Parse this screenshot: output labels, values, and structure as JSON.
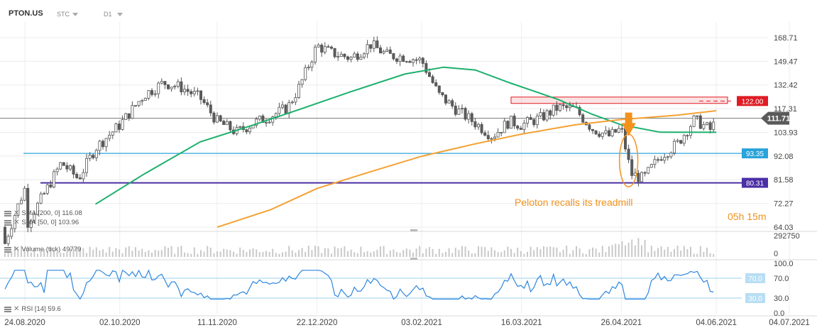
{
  "header": {
    "symbol": "PTON.US",
    "type_label": "STC",
    "timeframe": "D1"
  },
  "indicators": {
    "sma200": "SMA [200, 0] 116.08",
    "sma50": "SMA [50, 0] 103.96",
    "volume": "Volume (tick) 49779",
    "rsi": "RSI [14] 59.6"
  },
  "annotation": {
    "text": "Peloton recalls its treadmill",
    "timer": "05h 15m"
  },
  "colors": {
    "sma50": "#1bb06c",
    "sma200": "#f5a133",
    "support_93": "#29a3db",
    "support_80": "#4b2fa5",
    "resistance": "#e01b24",
    "annotation": "#f2921d",
    "rsi": "#2e86de",
    "up_candle": "#ffffff",
    "down_candle": "#5b5b5b"
  },
  "chart_data": [
    {
      "type": "candlestick",
      "x_ticks": [
        "24.08.2020",
        "02.10.2020",
        "11.11.2020",
        "22.12.2020",
        "03.02.2021",
        "16.03.2021",
        "26.04.2021",
        "04.06.2021",
        "04.07.2021"
      ],
      "y_ticks": [
        168.71,
        149.47,
        132.42,
        117.31,
        103.93,
        92.08,
        81.58,
        72.27,
        64.03
      ],
      "y_scale": "log",
      "current_price": 111.71,
      "price_levels": [
        {
          "value": 122.0,
          "label": "122.00",
          "color": "#e01b24"
        },
        {
          "value": 93.35,
          "label": "93.35",
          "color": "#29a3db"
        },
        {
          "value": 80.31,
          "label": "80.31",
          "color": "#4b2fa5"
        }
      ],
      "resistance_zone": [
        120.5,
        124.5
      ],
      "close_series": [
        {
          "date": "2020-08-24",
          "close": 64
        },
        {
          "date": "2020-09-01",
          "close": 76
        },
        {
          "date": "2020-09-08",
          "close": 89
        },
        {
          "date": "2020-09-15",
          "close": 82
        },
        {
          "date": "2020-09-22",
          "close": 96
        },
        {
          "date": "2020-10-02",
          "close": 108
        },
        {
          "date": "2020-10-12",
          "close": 126
        },
        {
          "date": "2020-10-20",
          "close": 134
        },
        {
          "date": "2020-10-27",
          "close": 131
        },
        {
          "date": "2020-11-04",
          "close": 124
        },
        {
          "date": "2020-11-11",
          "close": 110
        },
        {
          "date": "2020-11-19",
          "close": 104
        },
        {
          "date": "2020-11-26",
          "close": 109
        },
        {
          "date": "2020-12-03",
          "close": 113
        },
        {
          "date": "2020-12-10",
          "close": 118
        },
        {
          "date": "2020-12-15",
          "close": 132
        },
        {
          "date": "2020-12-22",
          "close": 162
        },
        {
          "date": "2020-12-28",
          "close": 156
        },
        {
          "date": "2021-01-05",
          "close": 152
        },
        {
          "date": "2021-01-13",
          "close": 163
        },
        {
          "date": "2021-01-20",
          "close": 154
        },
        {
          "date": "2021-01-27",
          "close": 153
        },
        {
          "date": "2021-02-03",
          "close": 150
        },
        {
          "date": "2021-02-10",
          "close": 126
        },
        {
          "date": "2021-02-18",
          "close": 116
        },
        {
          "date": "2021-02-25",
          "close": 109
        },
        {
          "date": "2021-03-04",
          "close": 102
        },
        {
          "date": "2021-03-11",
          "close": 110
        },
        {
          "date": "2021-03-16",
          "close": 108
        },
        {
          "date": "2021-03-24",
          "close": 112
        },
        {
          "date": "2021-03-31",
          "close": 118
        },
        {
          "date": "2021-04-07",
          "close": 117
        },
        {
          "date": "2021-04-14",
          "close": 106
        },
        {
          "date": "2021-04-21",
          "close": 102
        },
        {
          "date": "2021-04-26",
          "close": 106
        },
        {
          "date": "2021-04-30",
          "close": 84
        },
        {
          "date": "2021-05-05",
          "close": 82
        },
        {
          "date": "2021-05-12",
          "close": 92
        },
        {
          "date": "2021-05-19",
          "close": 98
        },
        {
          "date": "2021-05-26",
          "close": 111
        },
        {
          "date": "2021-06-02",
          "close": 105
        },
        {
          "date": "2021-06-04",
          "close": 111.71
        }
      ],
      "series": [
        {
          "name": "SMA [200, 0]",
          "last": 116.08
        },
        {
          "name": "SMA [50, 0]",
          "last": 103.96
        }
      ]
    },
    {
      "type": "bar",
      "name": "Volume (tick)",
      "y_ticks": [
        292750,
        0
      ],
      "last": 49779
    },
    {
      "type": "line",
      "name": "RSI [14]",
      "y_ticks": [
        100.0,
        70.0,
        30.0,
        0.0
      ],
      "levels": [
        {
          "value": 70.0,
          "label": "70.0"
        },
        {
          "value": 30.0,
          "label": "30.0"
        }
      ],
      "last": 59.6
    }
  ]
}
